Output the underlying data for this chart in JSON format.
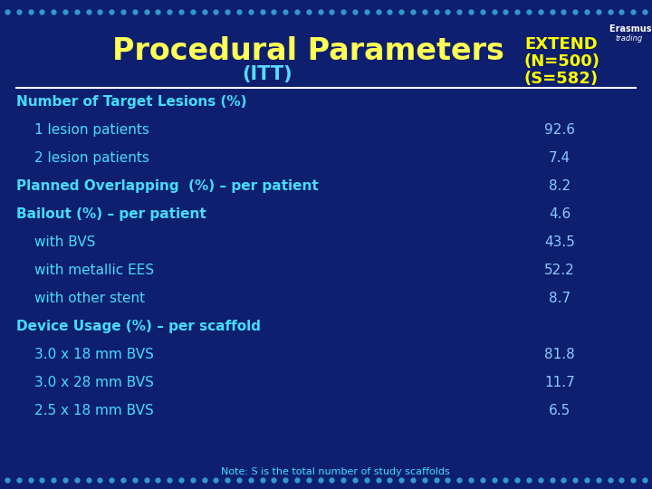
{
  "title": "Procedural Parameters",
  "subtitle": "(ITT)",
  "bg_color": "#0d1f6e",
  "title_color": "#ffff55",
  "subtitle_color": "#55ddff",
  "header_color": "#ffff00",
  "text_color": "#44ddff",
  "bold_label_color": "#44ddff",
  "value_color": "#88ccff",
  "dot_color": "#3399cc",
  "rows": [
    {
      "label": "Number of Target Lesions (%)",
      "value": "",
      "indent": 0,
      "bold": true
    },
    {
      "label": "1 lesion patients",
      "value": "92.6",
      "indent": 1,
      "bold": false
    },
    {
      "label": "2 lesion patients",
      "value": "7.4",
      "indent": 1,
      "bold": false
    },
    {
      "label": "Planned Overlapping  (%) – per patient",
      "value": "8.2",
      "indent": 0,
      "bold": true
    },
    {
      "label": "Bailout (%) – per patient",
      "value": "4.6",
      "indent": 0,
      "bold": true
    },
    {
      "label": "with BVS",
      "value": "43.5",
      "indent": 1,
      "bold": false
    },
    {
      "label": "with metallic EES",
      "value": "52.2",
      "indent": 1,
      "bold": false
    },
    {
      "label": "with other stent",
      "value": "8.7",
      "indent": 1,
      "bold": false
    },
    {
      "label": "Device Usage (%) – per scaffold",
      "value": "",
      "indent": 0,
      "bold": true
    },
    {
      "label": "3.0 x 18 mm BVS",
      "value": "81.8",
      "indent": 1,
      "bold": false
    },
    {
      "label": "3.0 x 28 mm BVS",
      "value": "11.7",
      "indent": 1,
      "bold": false
    },
    {
      "label": "2.5 x 18 mm BVS",
      "value": "6.5",
      "indent": 1,
      "bold": false
    }
  ],
  "note": "Note: S is the total number of study scaffolds",
  "title_fontsize": 24,
  "subtitle_fontsize": 15,
  "header_fontsize": 13,
  "row_fontsize": 11,
  "note_fontsize": 8
}
